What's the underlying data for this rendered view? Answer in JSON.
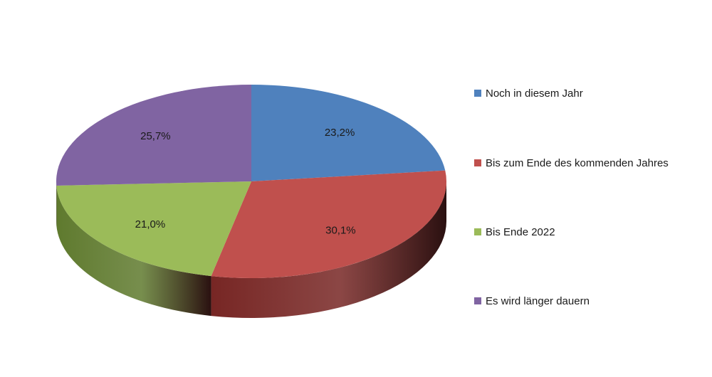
{
  "chart_data": {
    "type": "pie",
    "style": "3d",
    "legend_position": "right",
    "slices": [
      {
        "label": "Noch in diesem Jahr",
        "value": 23.2,
        "display": "23,2%",
        "color": "#4f81bd",
        "side_color": "#345a8a"
      },
      {
        "label": "Bis zum Ende des kommenden Jahres",
        "value": 30.1,
        "display": "30,1%",
        "color": "#c0504d",
        "side_color": "#772624"
      },
      {
        "label": "Bis Ende 2022",
        "value": 21.0,
        "display": "21,0%",
        "color": "#9bbb59",
        "side_color": "#5f7a2e"
      },
      {
        "label": "Es wird länger dauern",
        "value": 25.7,
        "display": "25,7%",
        "color": "#8064a2",
        "side_color": "#57437a"
      }
    ]
  }
}
